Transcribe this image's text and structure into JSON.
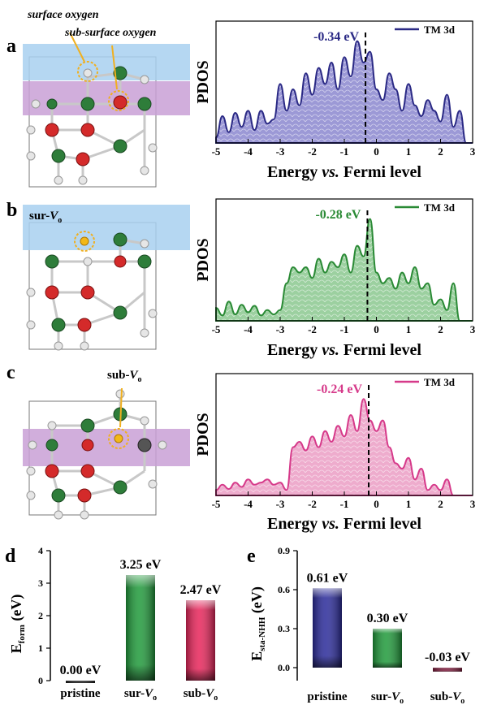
{
  "panels": {
    "a": {
      "letter": "a",
      "surface_oxygen_label": "surface oxygen",
      "subsurface_oxygen_label": "sub-surface oxygen"
    },
    "b": {
      "letter": "b",
      "vacancy_label_prefix": "sur-",
      "vacancy_label_main": "V",
      "vacancy_label_sub": "o"
    },
    "c": {
      "letter": "c",
      "vacancy_label_prefix": "sub-",
      "vacancy_label_main": "V",
      "vacancy_label_sub": "o"
    },
    "d": {
      "letter": "d"
    },
    "e": {
      "letter": "e"
    }
  },
  "chart_data": [
    {
      "type": "area",
      "panel": "a",
      "xlabel_pre": "Energy ",
      "xlabel_italic": "vs.",
      "xlabel_post": " Fermi level",
      "ylabel": "PDOS",
      "xlim": [
        -5,
        3
      ],
      "xticks": [
        "-5",
        "-4",
        "-3",
        "-2",
        "-1",
        "0",
        "1",
        "2",
        "3"
      ],
      "legend": "TM 3d",
      "color": "#2b2a85",
      "fill": "#9c99d6",
      "d_band_center_label": "-0.34 eV",
      "d_band_center": -0.34,
      "x": [
        -5,
        -4.8,
        -4.6,
        -4.4,
        -4.2,
        -4,
        -3.8,
        -3.6,
        -3.4,
        -3.2,
        -3,
        -2.8,
        -2.6,
        -2.4,
        -2.2,
        -2,
        -1.8,
        -1.6,
        -1.4,
        -1.2,
        -1,
        -0.8,
        -0.6,
        -0.4,
        -0.2,
        0,
        0.2,
        0.4,
        0.6,
        0.8,
        1,
        1.2,
        1.4,
        1.6,
        1.8,
        2,
        2.2,
        2.4,
        2.6,
        2.8,
        3
      ],
      "y": [
        0.05,
        0.25,
        0.1,
        0.28,
        0.15,
        0.3,
        0.12,
        0.3,
        0.18,
        0.22,
        0.55,
        0.3,
        0.5,
        0.35,
        0.65,
        0.45,
        0.7,
        0.55,
        0.75,
        0.5,
        0.8,
        0.62,
        0.95,
        0.75,
        0.85,
        0.5,
        0.4,
        0.65,
        0.5,
        0.3,
        0.55,
        0.35,
        0.25,
        0.4,
        0.3,
        0.2,
        0.45,
        0.15,
        0.3,
        0.0,
        0.0
      ]
    },
    {
      "type": "area",
      "panel": "b",
      "xlabel_pre": "Energy ",
      "xlabel_italic": "vs.",
      "xlabel_post": " Fermi level",
      "ylabel": "PDOS",
      "xlim": [
        -5,
        3
      ],
      "xticks": [
        "-5",
        "-4",
        "-3",
        "-2",
        "-1",
        "0",
        "1",
        "2",
        "3"
      ],
      "legend": "TM 3d",
      "color": "#2a8a35",
      "fill": "#9cd0a0",
      "d_band_center_label": "-0.28 eV",
      "d_band_center": -0.28,
      "x": [
        -5,
        -4.8,
        -4.6,
        -4.4,
        -4.2,
        -4,
        -3.8,
        -3.6,
        -3.4,
        -3.2,
        -3,
        -2.8,
        -2.6,
        -2.4,
        -2.2,
        -2,
        -1.8,
        -1.6,
        -1.4,
        -1.2,
        -1,
        -0.8,
        -0.6,
        -0.4,
        -0.2,
        0,
        0.2,
        0.4,
        0.6,
        0.8,
        1,
        1.2,
        1.4,
        1.6,
        1.8,
        2,
        2.2,
        2.4,
        2.6,
        2.8,
        3
      ],
      "y": [
        0.12,
        0.05,
        0.18,
        0.06,
        0.15,
        0.08,
        0.14,
        0.05,
        0.1,
        0.06,
        0.1,
        0.35,
        0.5,
        0.45,
        0.5,
        0.4,
        0.58,
        0.45,
        0.55,
        0.5,
        0.62,
        0.45,
        0.7,
        0.6,
        0.95,
        0.45,
        0.35,
        0.4,
        0.3,
        0.45,
        0.35,
        0.5,
        0.3,
        0.35,
        0.15,
        0.2,
        0.1,
        0.35,
        0.0,
        0.0,
        0.0
      ]
    },
    {
      "type": "area",
      "panel": "c",
      "xlabel_pre": "Energy ",
      "xlabel_italic": "vs.",
      "xlabel_post": " Fermi level",
      "ylabel": "PDOS",
      "xlim": [
        -5,
        3
      ],
      "xticks": [
        "-5",
        "-4",
        "-3",
        "-2",
        "-1",
        "0",
        "1",
        "2",
        "3"
      ],
      "legend": "TM 3d",
      "color": "#d63a8a",
      "fill": "#eeaccd",
      "d_band_center_label": "-0.24 eV",
      "d_band_center": -0.24,
      "x": [
        -5,
        -4.8,
        -4.6,
        -4.4,
        -4.2,
        -4,
        -3.8,
        -3.6,
        -3.4,
        -3.2,
        -3,
        -2.8,
        -2.6,
        -2.4,
        -2.2,
        -2,
        -1.8,
        -1.6,
        -1.4,
        -1.2,
        -1,
        -0.8,
        -0.6,
        -0.4,
        -0.2,
        0,
        0.2,
        0.4,
        0.6,
        0.8,
        1,
        1.2,
        1.4,
        1.6,
        1.8,
        2,
        2.2,
        2.4,
        2.6,
        2.8,
        3
      ],
      "y": [
        0.05,
        0.1,
        0.06,
        0.12,
        0.08,
        0.15,
        0.1,
        0.12,
        0.15,
        0.1,
        0.12,
        0.05,
        0.45,
        0.5,
        0.42,
        0.55,
        0.45,
        0.6,
        0.5,
        0.65,
        0.55,
        0.75,
        0.6,
        0.9,
        0.7,
        0.6,
        0.7,
        0.45,
        0.3,
        0.25,
        0.35,
        0.15,
        0.25,
        0.05,
        0.1,
        0.05,
        0.15,
        0.0,
        0.0,
        0.0,
        0.0
      ]
    },
    {
      "type": "bar",
      "panel": "d",
      "ylabel_main": "E",
      "ylabel_sub": "form",
      "ylabel_unit": " (eV)",
      "ylim": [
        0,
        4
      ],
      "yticks": [
        "0",
        "1",
        "2",
        "3",
        "4"
      ],
      "categories": [
        "pristine",
        "sur-",
        "sub-"
      ],
      "category_suffix": [
        "",
        "V",
        "V"
      ],
      "category_sub": [
        "",
        "o",
        "o"
      ],
      "values": [
        0.0,
        3.25,
        2.47
      ],
      "value_labels": [
        "0.00 eV",
        "3.25 eV",
        "2.47 eV"
      ],
      "colors": [
        "#1a1a1a",
        "#1f9a3a",
        "#e8245a"
      ]
    },
    {
      "type": "bar",
      "panel": "e",
      "ylabel_main": "E",
      "ylabel_sub": "sta-NHH",
      "ylabel_unit": " (eV)",
      "ylim": [
        -0.1,
        0.9
      ],
      "yticks": [
        "0.0",
        "0.3",
        "0.6",
        "0.9"
      ],
      "ytick_values": [
        0.0,
        0.3,
        0.6,
        0.9
      ],
      "categories": [
        "pristine",
        "sur-",
        "sub-"
      ],
      "category_suffix": [
        "",
        "V",
        "V"
      ],
      "category_sub": [
        "",
        "o",
        "o"
      ],
      "values": [
        0.61,
        0.3,
        -0.03
      ],
      "value_labels": [
        "0.61 eV",
        "0.30 eV",
        "-0.03 eV"
      ],
      "colors": [
        "#2a2a9a",
        "#1f9a3a",
        "#7a1a3a"
      ]
    }
  ]
}
